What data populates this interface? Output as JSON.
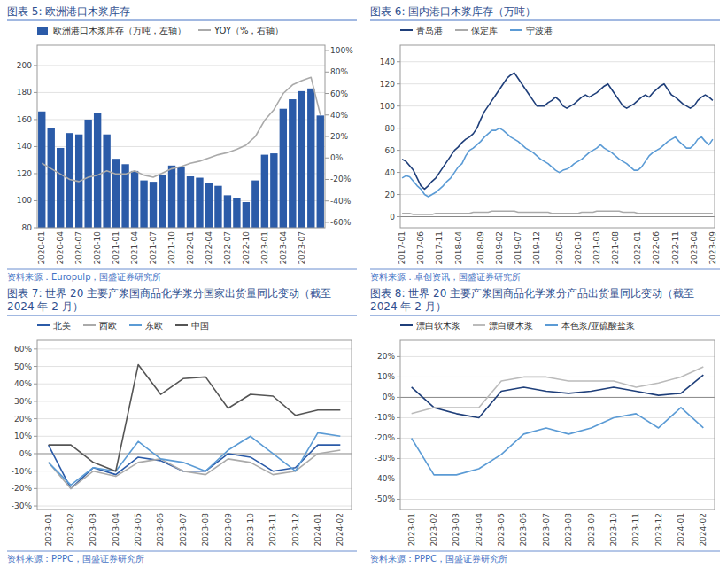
{
  "chart_data": [
    {
      "type": "bar",
      "title": "图表 5:  欧洲港口木浆库存",
      "annotations": [
        "资料来源：Europulp，国盛证券研究所"
      ],
      "categories": [
        "2020-01",
        null,
        "2020-04",
        null,
        "2020-07",
        null,
        "2020-10",
        null,
        "2021-01",
        null,
        "2021-04",
        null,
        "2021-07",
        null,
        "2021-10",
        null,
        "2022-01",
        null,
        "2022-04",
        null,
        "2022-07",
        null,
        "2022-10",
        null,
        "2023-01",
        null,
        "2023-04",
        null,
        "2023-07",
        null,
        null
      ],
      "series": [
        {
          "name": "欧洲港口木浆库存（万吨，左轴）",
          "type": "bar",
          "color": "#2B5BA8",
          "values": [
            166,
            154,
            139,
            150,
            149,
            160,
            165,
            149,
            131,
            127,
            122,
            115,
            114,
            119,
            126,
            125,
            118,
            117,
            113,
            111,
            104,
            102,
            99,
            115,
            134,
            135,
            168,
            175,
            181,
            183,
            163
          ]
        },
        {
          "name": "YOY（%，右轴）",
          "type": "line",
          "color": "#AAAAAA",
          "axis": "y2",
          "values": [
            -5,
            -10,
            -15,
            -20,
            -22,
            -18,
            -16,
            -12,
            -15,
            -15,
            -12,
            -16,
            -18,
            -14,
            -10,
            -8,
            -5,
            -3,
            0,
            3,
            5,
            8,
            12,
            20,
            35,
            45,
            60,
            68,
            72,
            75,
            40
          ]
        }
      ],
      "ylim": [
        80,
        215
      ],
      "yticks": [
        80,
        100,
        120,
        140,
        160,
        180,
        200
      ],
      "y2lim": [
        -65,
        105
      ],
      "y2ticks": [
        {
          "value": -60,
          "label": "-60%"
        },
        {
          "value": -40,
          "label": "-40%"
        },
        {
          "value": -20,
          "label": "-20%"
        },
        {
          "value": 0,
          "label": "0%"
        },
        {
          "value": 20,
          "label": "20%"
        },
        {
          "value": 40,
          "label": "40%"
        },
        {
          "value": 60,
          "label": "60%"
        },
        {
          "value": 80,
          "label": "80%"
        },
        {
          "value": 100,
          "label": "100%"
        }
      ],
      "grid": true,
      "legend": "upper left"
    },
    {
      "type": "line",
      "title": "图表 6:  国内港口木浆库存（万吨）",
      "annotations": [
        "资料来源：卓创资讯，国盛证券研究所"
      ],
      "categories": [
        "2017-01",
        null,
        null,
        null,
        null,
        "2017-06",
        null,
        null,
        null,
        null,
        "2017-11",
        null,
        null,
        null,
        null,
        "2018-04",
        null,
        null,
        null,
        null,
        null,
        "2018-09",
        null,
        null,
        null,
        null,
        "2019-02",
        null,
        null,
        null,
        null,
        "2019-07",
        null,
        null,
        null,
        null,
        "2019-12",
        null,
        null,
        null,
        null,
        null,
        "2020-05",
        null,
        null,
        null,
        null,
        "2020-10",
        null,
        null,
        null,
        null,
        "2021-03",
        null,
        null,
        null,
        null,
        "2021-08",
        null,
        null,
        null,
        null,
        null,
        "2022-01",
        null,
        null,
        null,
        null,
        "2022-06",
        null,
        null,
        null,
        null,
        "2022-11",
        null,
        null,
        null,
        null,
        "2023-04",
        null,
        null,
        null,
        null,
        "2023-09"
      ],
      "series": [
        {
          "name": "青岛港",
          "color": "#1F3F7A",
          "values": [
            52,
            50,
            46,
            42,
            35,
            28,
            25,
            28,
            32,
            35,
            40,
            45,
            50,
            55,
            60,
            63,
            67,
            70,
            72,
            75,
            80,
            88,
            95,
            100,
            105,
            110,
            115,
            120,
            125,
            128,
            130,
            125,
            120,
            115,
            110,
            105,
            100,
            100,
            100,
            103,
            105,
            108,
            105,
            100,
            98,
            100,
            102,
            105,
            108,
            110,
            108,
            110,
            112,
            115,
            118,
            120,
            115,
            110,
            105,
            100,
            98,
            100,
            102,
            105,
            108,
            110,
            108,
            112,
            115,
            118,
            120,
            115,
            110,
            108,
            105,
            102,
            100,
            98,
            100,
            105,
            108,
            110,
            108,
            105
          ]
        },
        {
          "name": "保定库",
          "color": "#AAAAAA",
          "values": [
            3,
            3,
            3,
            2,
            2,
            2,
            2,
            2,
            2,
            3,
            3,
            3,
            3,
            3,
            3,
            3,
            3,
            3,
            3,
            4,
            4,
            4,
            4,
            4,
            5,
            5,
            5,
            5,
            5,
            5,
            5,
            4,
            4,
            4,
            4,
            4,
            4,
            4,
            4,
            4,
            3,
            3,
            3,
            3,
            3,
            3,
            3,
            3,
            4,
            4,
            4,
            4,
            5,
            5,
            5,
            5,
            5,
            5,
            5,
            4,
            4,
            4,
            4,
            3,
            3,
            3,
            3,
            3,
            3,
            3,
            3,
            3,
            3,
            3,
            3,
            3,
            3,
            3,
            3,
            3,
            3,
            3,
            3,
            3
          ]
        },
        {
          "name": "宁波港",
          "color": "#5B9BD5",
          "values": [
            35,
            37,
            36,
            32,
            28,
            25,
            20,
            18,
            20,
            22,
            25,
            28,
            32,
            35,
            40,
            45,
            48,
            55,
            60,
            62,
            65,
            68,
            72,
            75,
            78,
            78,
            80,
            78,
            75,
            72,
            70,
            68,
            65,
            62,
            60,
            58,
            55,
            52,
            50,
            48,
            45,
            42,
            40,
            42,
            43,
            45,
            48,
            50,
            52,
            55,
            58,
            60,
            62,
            65,
            62,
            60,
            58,
            55,
            52,
            50,
            48,
            45,
            42,
            42,
            45,
            50,
            55,
            58,
            60,
            62,
            65,
            68,
            70,
            72,
            68,
            65,
            62,
            62,
            65,
            70,
            72,
            68,
            65,
            70
          ]
        }
      ],
      "ylim": [
        -10,
        155
      ],
      "yticks": [
        0,
        20,
        40,
        60,
        80,
        100,
        120,
        140
      ],
      "grid": true,
      "legend": "upper left"
    },
    {
      "type": "line",
      "title": "图表 7:  世界 20 主要产浆国商品化学浆分国家出货量同比变动（截至\n2024 年 2 月）",
      "annotations": [
        "资料来源：PPPC，国盛证券研究所"
      ],
      "categories": [
        "2023-01",
        "2023-02",
        "2023-03",
        "2023-04",
        "2023-05",
        "2023-06",
        "2023-07",
        "2023-08",
        "2023-09",
        "2023-10",
        "2023-11",
        "2023-12",
        "2024-01",
        "2024-02"
      ],
      "series": [
        {
          "name": "北美",
          "color": "#2B5BA8",
          "values": [
            5,
            -20,
            -8,
            -12,
            -2,
            -4,
            -10,
            -10,
            0,
            -2,
            -10,
            -8,
            5,
            5
          ]
        },
        {
          "name": "西欧",
          "color": "#AAAAAA",
          "values": [
            -5,
            -20,
            -10,
            -13,
            -5,
            -3,
            -10,
            -12,
            -3,
            -5,
            -12,
            -10,
            0,
            2
          ]
        },
        {
          "name": "东欧",
          "color": "#5B9BD5",
          "values": [
            -5,
            -18,
            -8,
            -10,
            7,
            -3,
            -5,
            -10,
            2,
            10,
            0,
            -10,
            12,
            10
          ]
        },
        {
          "name": "中国",
          "color": "#555555",
          "values": [
            5,
            5,
            -5,
            -10,
            51,
            34,
            43,
            44,
            26,
            34,
            33,
            22,
            25,
            25
          ]
        }
      ],
      "ylim": [
        -32,
        65
      ],
      "yticks": [
        {
          "value": -30,
          "label": "-30%"
        },
        {
          "value": -20,
          "label": "-20%"
        },
        {
          "value": -10,
          "label": "-10%"
        },
        {
          "value": 0,
          "label": "0%"
        },
        {
          "value": 10,
          "label": "10%"
        },
        {
          "value": 20,
          "label": "20%"
        },
        {
          "value": 30,
          "label": "30%"
        },
        {
          "value": 40,
          "label": "40%"
        },
        {
          "value": 50,
          "label": "50%"
        },
        {
          "value": 60,
          "label": "60%"
        }
      ],
      "grid": true,
      "legend": "upper left"
    },
    {
      "type": "line",
      "title": "图表 8:  世界 20 主要产浆国商品化学浆分产品出货量同比变动（截至\n2024 年 2 月）",
      "annotations": [
        "资料来源：PPPC，国盛证券研究所"
      ],
      "categories": [
        "2023-01",
        "2023-02",
        "2023-03",
        "2023-04",
        "2023-05",
        "2023-06",
        "2023-07",
        "2023-08",
        "2023-09",
        "2023-10",
        "2023-11",
        "2023-12",
        "2024-01",
        "2024-02"
      ],
      "series": [
        {
          "name": "漂白软木浆",
          "color": "#1F3F7A",
          "values": [
            5,
            -5,
            -8,
            -10,
            3,
            5,
            3,
            2,
            3,
            5,
            3,
            1,
            2,
            11
          ]
        },
        {
          "name": "漂白硬木浆",
          "color": "#BBBBBB",
          "values": [
            -8,
            -5,
            -5,
            -5,
            8,
            10,
            10,
            8,
            8,
            8,
            5,
            7,
            10,
            15
          ]
        },
        {
          "name": "本色浆/亚硫酸盐浆",
          "color": "#5B9BD5",
          "values": [
            -20,
            -38,
            -38,
            -35,
            -28,
            -18,
            -15,
            -18,
            -15,
            -10,
            -8,
            -15,
            -5,
            -15
          ]
        }
      ],
      "ylim": [
        -55,
        28
      ],
      "yticks": [
        {
          "value": -50,
          "label": "-50%"
        },
        {
          "value": -40,
          "label": "-40%"
        },
        {
          "value": -30,
          "label": "-30%"
        },
        {
          "value": -20,
          "label": "-20%"
        },
        {
          "value": -10,
          "label": "-10%"
        },
        {
          "value": 0,
          "label": "0%"
        },
        {
          "value": 10,
          "label": "10%"
        },
        {
          "value": 20,
          "label": "20%"
        }
      ],
      "grid": true,
      "legend": "upper left"
    }
  ]
}
